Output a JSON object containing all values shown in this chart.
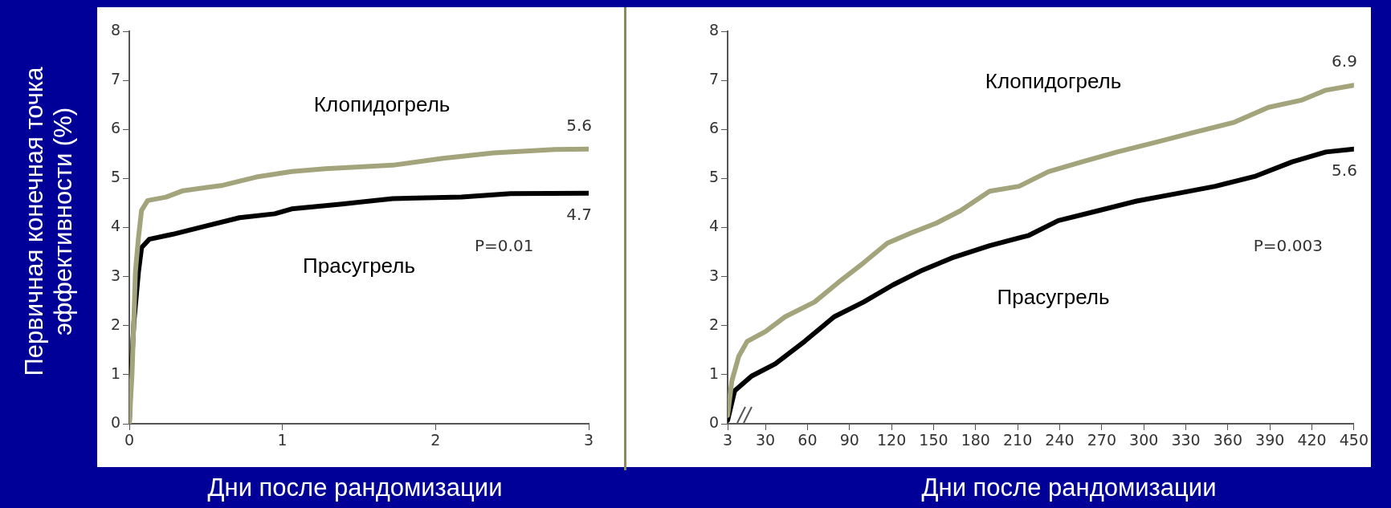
{
  "chart_data": [
    {
      "type": "line",
      "ylabel": "Первичная конечная точка эффективности (%)",
      "xlabel": "Дни после рандомизации",
      "xlim": [
        0,
        3
      ],
      "xticks": [
        0,
        1,
        2,
        3
      ],
      "ylim": [
        0,
        8
      ],
      "yticks": [
        0,
        1,
        2,
        3,
        4,
        5,
        6,
        7,
        8
      ],
      "grid": false,
      "legend": false,
      "marker": "none",
      "line_style": "solid",
      "annotations": [
        "P=0.01"
      ],
      "series": [
        {
          "name": "Клопидогрель",
          "color": "#a3a47c",
          "x": [
            0,
            0.018,
            0.04,
            0.06,
            0.08,
            0.12,
            0.24,
            0.35,
            0.61,
            0.83,
            1.06,
            1.28,
            1.72,
            2.05,
            2.38,
            2.78,
            3.0
          ],
          "values": [
            0,
            1.03,
            3.1,
            3.8,
            4.35,
            4.55,
            4.62,
            4.75,
            4.86,
            5.03,
            5.14,
            5.2,
            5.27,
            5.41,
            5.52,
            5.59,
            5.6
          ],
          "value_labels": [
            null,
            null,
            null,
            null,
            null,
            null,
            null,
            null,
            null,
            null,
            null,
            null,
            null,
            null,
            null,
            null,
            "5.6"
          ]
        },
        {
          "name": "Прасугрель",
          "color": "#000000",
          "x": [
            0,
            0.007,
            0.03,
            0.06,
            0.08,
            0.13,
            0.28,
            0.5,
            0.72,
            0.95,
            1.06,
            1.39,
            1.72,
            2.17,
            2.49,
            3.0
          ],
          "values": [
            0,
            0.7,
            2.07,
            3.1,
            3.59,
            3.76,
            3.86,
            4.03,
            4.2,
            4.28,
            4.38,
            4.48,
            4.59,
            4.62,
            4.69,
            4.7
          ],
          "value_labels": [
            null,
            null,
            null,
            null,
            null,
            null,
            null,
            null,
            null,
            null,
            null,
            null,
            null,
            null,
            null,
            "4.7"
          ]
        }
      ]
    },
    {
      "type": "line",
      "xlabel": "Дни после рандомизации",
      "xlim": [
        3,
        450
      ],
      "xticks": [
        3,
        30,
        60,
        90,
        120,
        150,
        180,
        210,
        240,
        270,
        300,
        330,
        360,
        390,
        420,
        450
      ],
      "ylim": [
        0,
        8
      ],
      "yticks": [
        0,
        1,
        2,
        3,
        4,
        5,
        6,
        7,
        8
      ],
      "grid": false,
      "legend": false,
      "marker": "none",
      "line_style": "solid",
      "annotations": [
        "P=0.003"
      ],
      "series": [
        {
          "name": "Клопидогрель",
          "color": "#a3a47c",
          "x": [
            3,
            6,
            11,
            17,
            30,
            44,
            65,
            82,
            100,
            117,
            134,
            152,
            169,
            190,
            211,
            232,
            256,
            281,
            309,
            336,
            364,
            389,
            413,
            430,
            450
          ],
          "values": [
            0.17,
            0.87,
            1.38,
            1.68,
            1.88,
            2.18,
            2.48,
            2.88,
            3.28,
            3.68,
            3.89,
            4.09,
            4.34,
            4.74,
            4.84,
            5.14,
            5.34,
            5.54,
            5.74,
            5.94,
            6.14,
            6.45,
            6.6,
            6.8,
            6.9
          ],
          "value_labels": [
            null,
            null,
            null,
            null,
            null,
            null,
            null,
            null,
            null,
            null,
            null,
            null,
            null,
            null,
            null,
            null,
            null,
            null,
            null,
            null,
            null,
            null,
            null,
            null,
            "6.9"
          ]
        },
        {
          "name": "Прасугрель",
          "color": "#000000",
          "x": [
            3,
            8,
            20,
            37,
            58,
            79,
            100,
            121,
            142,
            163,
            190,
            218,
            239,
            267,
            295,
            323,
            351,
            379,
            406,
            430,
            450
          ],
          "values": [
            0.07,
            0.67,
            0.97,
            1.22,
            1.68,
            2.18,
            2.48,
            2.83,
            3.13,
            3.38,
            3.63,
            3.84,
            4.14,
            4.34,
            4.54,
            4.69,
            4.84,
            5.04,
            5.34,
            5.54,
            5.6
          ],
          "value_labels": [
            null,
            null,
            null,
            null,
            null,
            null,
            null,
            null,
            null,
            null,
            null,
            null,
            null,
            null,
            null,
            null,
            null,
            null,
            null,
            null,
            "5.6"
          ]
        }
      ]
    }
  ]
}
